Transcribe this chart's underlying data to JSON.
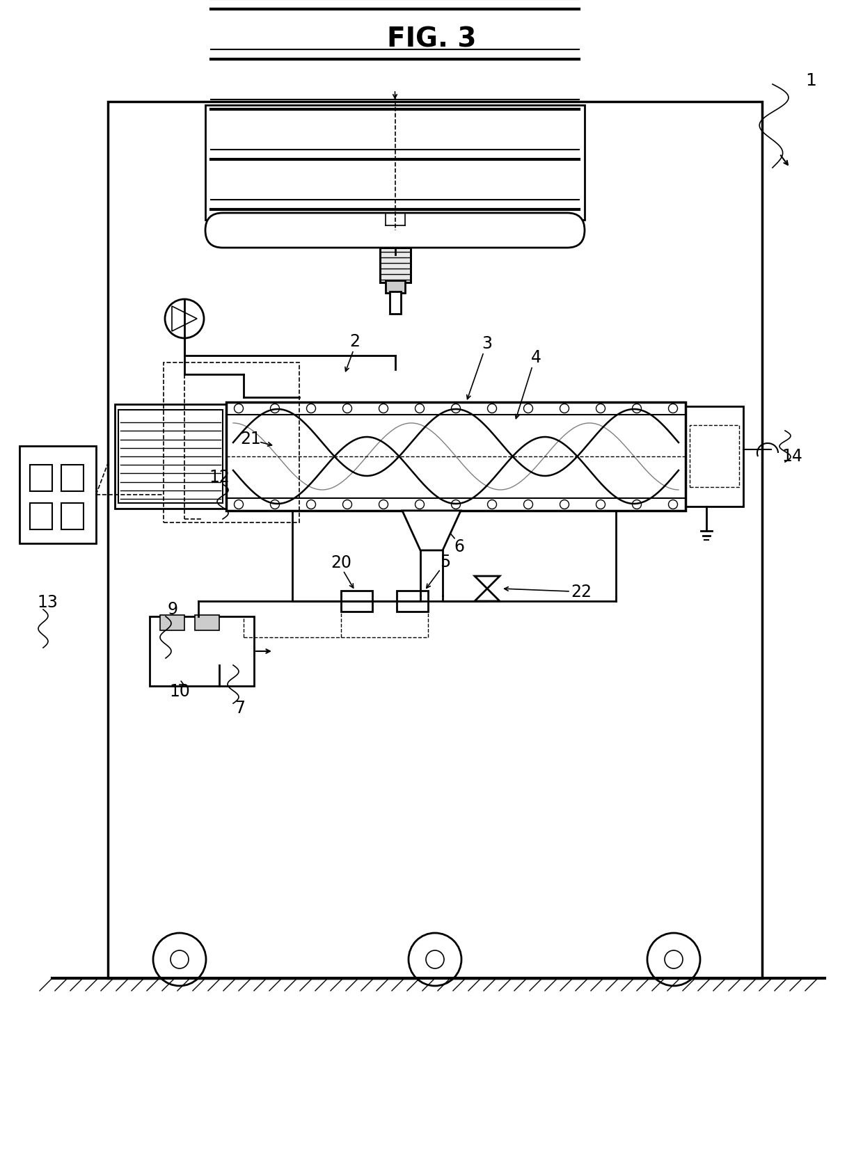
{
  "title": "FIG. 3",
  "title_fontsize": 28,
  "background_color": "#ffffff",
  "line_color": "#000000",
  "label1": "1",
  "label2": "2",
  "label3": "3",
  "label4": "4",
  "label5": "5",
  "label6": "6",
  "label7": "7",
  "label9": "9",
  "label10": "10",
  "label12": "12",
  "label13": "13",
  "label14": "14",
  "label20": "20",
  "label21": "21",
  "label22": "22"
}
